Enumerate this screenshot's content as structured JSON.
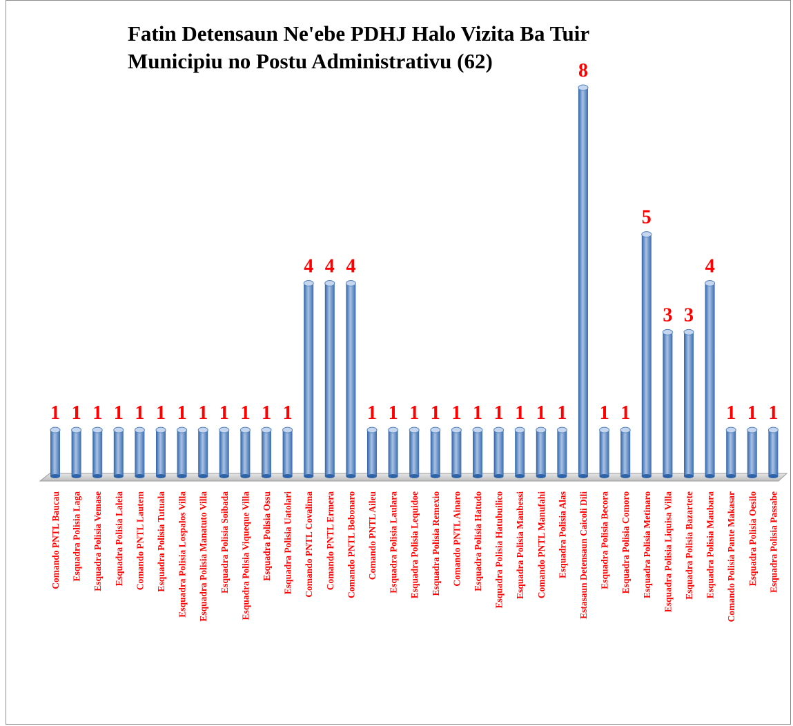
{
  "chart_data": {
    "type": "bar",
    "title_lines": [
      "Fatin Detensaun Ne'ebe PDHJ Halo Vizita Ba Tuir",
      "Municipiu no Postu Administrativu (62)"
    ],
    "categories": [
      "Comando PNTL  Baucau",
      "Esquadra Polisia Laga",
      "Esquadra Polisia Vemase",
      "Esquadra Polisia Laleia",
      "Comando PNTL  Lautem",
      "Esquadra Polisia Tutuala",
      "Esquadra Polisia Lospalos Villa",
      "Esquadra Polisia Manatuto Villa",
      "Esquadra Polisia Soibada",
      "Esquadra Polisia Viqueque Villa",
      "Esquadra Polisia Ossu",
      "Esquadra Polisia Uatolari",
      "Comando PNTL  Covalima",
      "Comando PNTL  Ermera",
      "Comando PNTL  Bobonaro",
      "Comando PNTL  Aileu",
      "Esquadra Polisia Laulara",
      "Esquadra Polisia Lequidoe",
      "Esquadra Polisia Remexio",
      "Comando PNTL  Ainaro",
      "Esquadra Polisia Hatudo",
      "Esquadra Polisia Hatubuilico",
      "Esquadra Polisia Maubessi",
      "Comando PNTL  Manufahi",
      "Esquadra Polisia Alas",
      "Estasaun Detensaun Caicoli Dili",
      "Esquadra Polisia Becora",
      "Esquadra Polisia Comoro",
      "Esquadra Polisia Metinaro",
      "Esquadra Polisia Liquisa Villa",
      "Esquadra Polisia Bazartete",
      "Esquadra Polisia Maubara",
      "Comando Polisia Pante Makasar",
      "Esquadra Polisia Oesilo",
      "Esquadra Polisia  Passabe"
    ],
    "values": [
      1,
      1,
      1,
      1,
      1,
      1,
      1,
      1,
      1,
      1,
      1,
      1,
      4,
      4,
      4,
      1,
      1,
      1,
      1,
      1,
      1,
      1,
      1,
      1,
      1,
      8,
      1,
      1,
      5,
      3,
      3,
      4,
      1,
      1,
      1
    ],
    "ylim": [
      0,
      8
    ],
    "grid": false,
    "legend": "none",
    "colors": {
      "bar_dark": "#2e63a8",
      "bar_mid": "#4f81bd",
      "bar_light": "#b9cde8",
      "label": "#ff0000",
      "floor": "#c6c6c6"
    }
  }
}
